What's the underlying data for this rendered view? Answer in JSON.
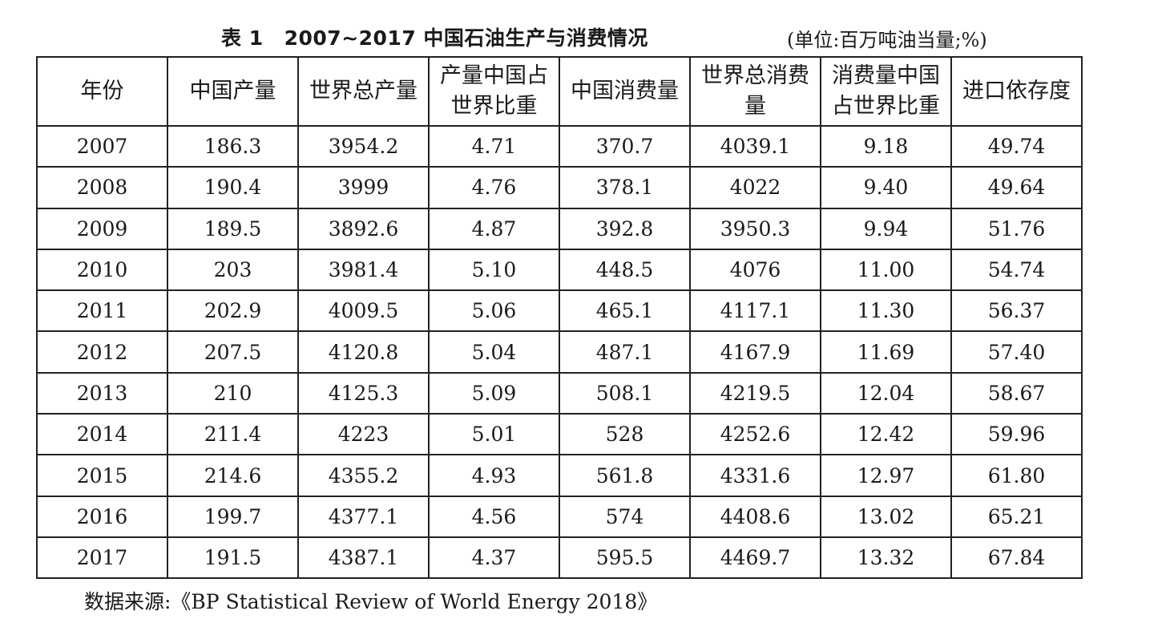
{
  "title": {
    "number": "表 1",
    "text": "2007~2017 中国石油生产与消费情况"
  },
  "unit": "(单位:百万吨油当量;%)",
  "table": {
    "headers": [
      "年份",
      "中国产量",
      "世界总产量",
      "产量中国占世界比重",
      "中国消费量",
      "世界总消费量",
      "消费量中国占世界比重",
      "进口依存度"
    ],
    "rows": [
      [
        "2007",
        "186.3",
        "3954.2",
        "4.71",
        "370.7",
        "4039.1",
        "9.18",
        "49.74"
      ],
      [
        "2008",
        "190.4",
        "3999",
        "4.76",
        "378.1",
        "4022",
        "9.40",
        "49.64"
      ],
      [
        "2009",
        "189.5",
        "3892.6",
        "4.87",
        "392.8",
        "3950.3",
        "9.94",
        "51.76"
      ],
      [
        "2010",
        "203",
        "3981.4",
        "5.10",
        "448.5",
        "4076",
        "11.00",
        "54.74"
      ],
      [
        "2011",
        "202.9",
        "4009.5",
        "5.06",
        "465.1",
        "4117.1",
        "11.30",
        "56.37"
      ],
      [
        "2012",
        "207.5",
        "4120.8",
        "5.04",
        "487.1",
        "4167.9",
        "11.69",
        "57.40"
      ],
      [
        "2013",
        "210",
        "4125.3",
        "5.09",
        "508.1",
        "4219.5",
        "12.04",
        "58.67"
      ],
      [
        "2014",
        "211.4",
        "4223",
        "5.01",
        "528",
        "4252.6",
        "12.42",
        "59.96"
      ],
      [
        "2015",
        "214.6",
        "4355.2",
        "4.93",
        "561.8",
        "4331.6",
        "12.97",
        "61.80"
      ],
      [
        "2016",
        "199.7",
        "4377.1",
        "4.56",
        "574",
        "4408.6",
        "13.02",
        "65.21"
      ],
      [
        "2017",
        "191.5",
        "4387.1",
        "4.37",
        "595.5",
        "4469.7",
        "13.32",
        "67.84"
      ]
    ]
  },
  "source": "数据来源:《BP Statistical Review of World Energy 2018》"
}
